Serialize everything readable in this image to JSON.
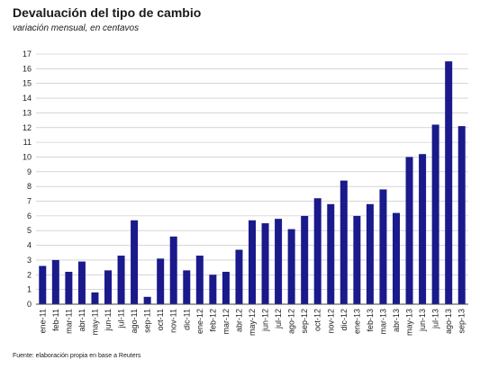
{
  "header": {
    "title": "Devaluación del tipo de cambio",
    "subtitle": "variación mensual, en centavos"
  },
  "footer": {
    "source": "Fuente: elaboración propia en base a Reuters"
  },
  "colors": {
    "bar": "#1a1a8c",
    "grid": "#bdbdbd",
    "axis": "#444444"
  },
  "chart_data": {
    "type": "bar",
    "title": "Devaluación del tipo de cambio",
    "subtitle": "variación mensual, en centavos",
    "xlabel": "",
    "ylabel": "",
    "ylim": [
      0,
      17
    ],
    "yticks": [
      0,
      1,
      2,
      3,
      4,
      5,
      6,
      7,
      8,
      9,
      10,
      11,
      12,
      13,
      14,
      15,
      16,
      17
    ],
    "grid": true,
    "categories": [
      "ene-11",
      "feb-11",
      "mar-11",
      "abr-11",
      "may-11",
      "jun-11",
      "jul-11",
      "ago-11",
      "sep-11",
      "oct-11",
      "nov-11",
      "dic-11",
      "ene-12",
      "feb-12",
      "mar-12",
      "abr-12",
      "may-12",
      "jun-12",
      "jul-12",
      "ago-12",
      "sep-12",
      "oct-12",
      "nov-12",
      "dic-12",
      "ene-13",
      "feb-13",
      "mar-13",
      "abr-13",
      "may-13",
      "jun-13",
      "jul-13",
      "ago-13",
      "sep-13"
    ],
    "series": [
      {
        "values": [
          2.6,
          3.0,
          2.2,
          2.9,
          0.8,
          2.3,
          3.3,
          5.7,
          0.5,
          3.1,
          4.6,
          2.3,
          3.3,
          2.0,
          2.2,
          3.7,
          5.7,
          5.5,
          5.8,
          5.1,
          6.0,
          7.2,
          6.8,
          8.4,
          6.0,
          6.8,
          7.8,
          6.2,
          10.0,
          10.2,
          12.2,
          16.5,
          12.1
        ]
      }
    ]
  }
}
